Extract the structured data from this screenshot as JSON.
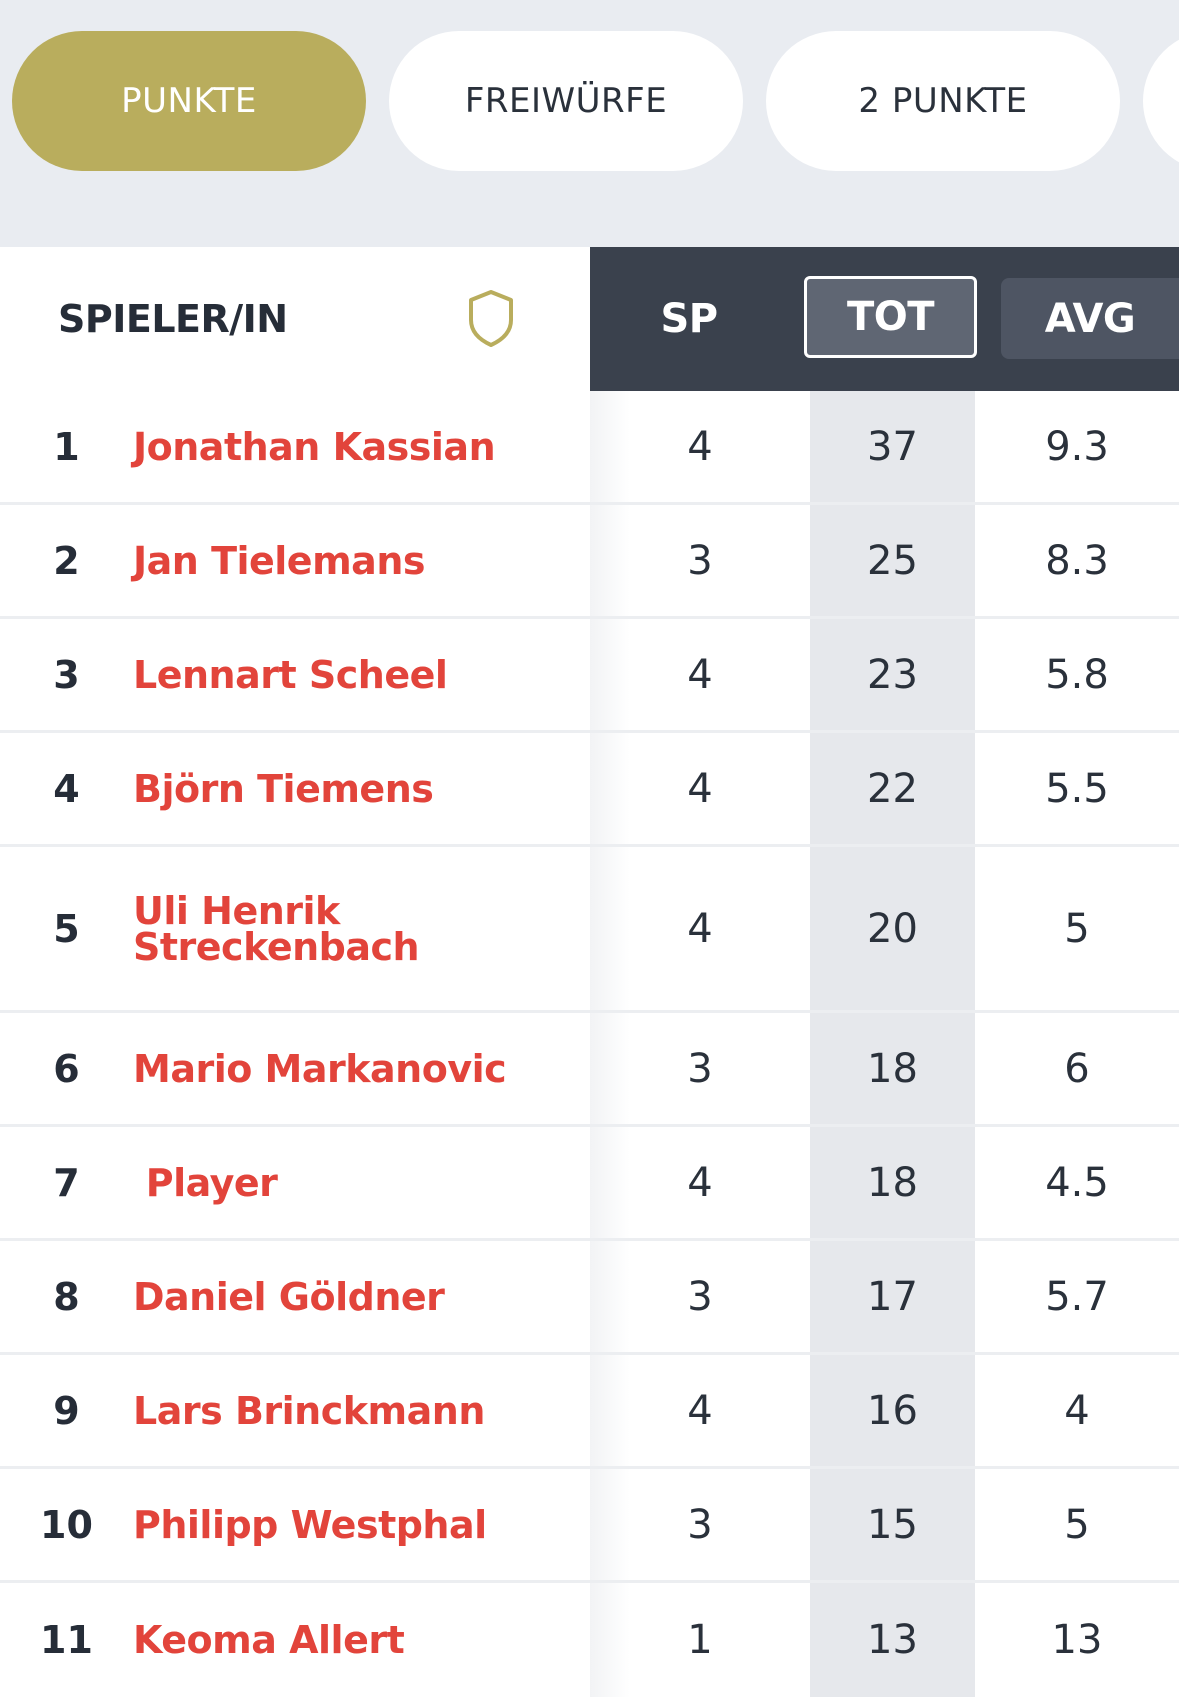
{
  "tabs": [
    {
      "label": "PUNKTE",
      "active": true
    },
    {
      "label": "FREIWÜRFE",
      "active": false
    },
    {
      "label": "2 PUNKTE",
      "active": false
    }
  ],
  "table": {
    "header": {
      "player": "SPIELER/IN",
      "sp": "SP",
      "tot": "TOT",
      "avg": "AVG"
    },
    "rows": [
      {
        "rank": "1",
        "name": "Jonathan Kassian",
        "sp": "4",
        "tot": "37",
        "avg": "9.3"
      },
      {
        "rank": "2",
        "name": "Jan Tielemans",
        "sp": "3",
        "tot": "25",
        "avg": "8.3"
      },
      {
        "rank": "3",
        "name": "Lennart Scheel",
        "sp": "4",
        "tot": "23",
        "avg": "5.8"
      },
      {
        "rank": "4",
        "name": "Björn Tiemens",
        "sp": "4",
        "tot": "22",
        "avg": "5.5"
      },
      {
        "rank": "5",
        "name": "Uli Henrik Streckenbach",
        "sp": "4",
        "tot": "20",
        "avg": "5"
      },
      {
        "rank": "6",
        "name": "Mario Markanovic",
        "sp": "3",
        "tot": "18",
        "avg": "6"
      },
      {
        "rank": "7",
        "name": " Player",
        "sp": "4",
        "tot": "18",
        "avg": "4.5"
      },
      {
        "rank": "8",
        "name": "Daniel Göldner",
        "sp": "3",
        "tot": "17",
        "avg": "5.7"
      },
      {
        "rank": "9",
        "name": "Lars Brinckmann",
        "sp": "4",
        "tot": "16",
        "avg": "4"
      },
      {
        "rank": "10",
        "name": "Philipp Westphal",
        "sp": "3",
        "tot": "15",
        "avg": "5"
      },
      {
        "rank": "11",
        "name": "Keoma Allert",
        "sp": "1",
        "tot": "13",
        "avg": "13"
      }
    ]
  },
  "icons": {
    "team_filter": "shield-icon"
  },
  "colors": {
    "accent": "#b9ad5d",
    "player_name": "#e2443b",
    "header_dark": "#3a414d"
  }
}
